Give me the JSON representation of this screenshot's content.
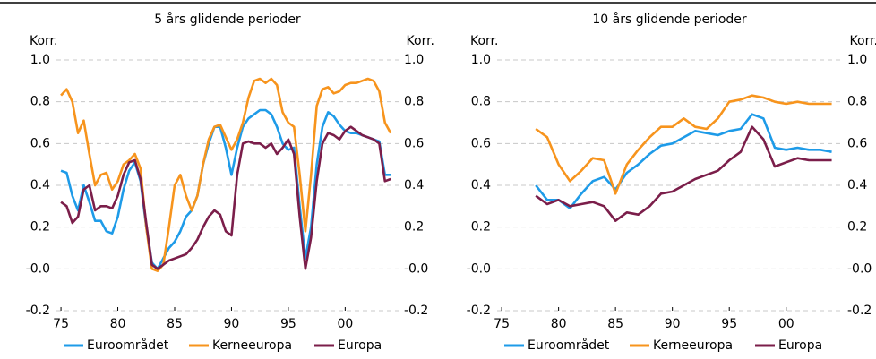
{
  "chart_data": [
    {
      "type": "line",
      "title": "5 års glidende perioder",
      "ylabel": "Korr.",
      "y2label": "Korr.",
      "xlim": [
        1974.6,
        2004.7
      ],
      "ylim": [
        -0.2,
        1.0
      ],
      "xticks": [
        {
          "value": 1975,
          "label": "75"
        },
        {
          "value": 1980,
          "label": "80"
        },
        {
          "value": 1985,
          "label": "85"
        },
        {
          "value": 1990,
          "label": "90"
        },
        {
          "value": 1995,
          "label": "95"
        },
        {
          "value": 2000,
          "label": "00"
        }
      ],
      "yticks": [
        {
          "value": -0.2,
          "label": "-0.2"
        },
        {
          "value": 0,
          "label": "-0.0"
        },
        0.2,
        0.4,
        0.6,
        0.8,
        {
          "value": 1,
          "label": "1.0"
        }
      ],
      "grid": true,
      "x": [
        1975,
        1975.5,
        1976,
        1976.5,
        1977,
        1977.5,
        1978,
        1978.5,
        1979,
        1979.5,
        1980,
        1980.5,
        1981,
        1981.5,
        1982,
        1982.5,
        1983,
        1983.5,
        1984,
        1984.5,
        1985,
        1985.5,
        1986,
        1986.5,
        1987,
        1987.5,
        1988,
        1988.5,
        1989,
        1989.5,
        1990,
        1990.5,
        1991,
        1991.5,
        1992,
        1992.5,
        1993,
        1993.5,
        1994,
        1994.5,
        1995,
        1995.5,
        1996,
        1996.5,
        1997,
        1997.5,
        1998,
        1998.5,
        1999,
        1999.5,
        2000,
        2000.5,
        2001,
        2001.5,
        2002,
        2002.5,
        2003,
        2003.5,
        2004
      ],
      "series": [
        {
          "name": "Euroområdet",
          "color": "#1e9be8",
          "values": [
            0.47,
            0.46,
            0.35,
            0.28,
            0.4,
            0.32,
            0.23,
            0.23,
            0.18,
            0.17,
            0.25,
            0.38,
            0.47,
            0.51,
            0.42,
            0.2,
            0.03,
            0.0,
            0.05,
            0.1,
            0.13,
            0.18,
            0.25,
            0.28,
            0.35,
            0.5,
            0.6,
            0.68,
            0.68,
            0.58,
            0.45,
            0.58,
            0.68,
            0.72,
            0.74,
            0.76,
            0.76,
            0.74,
            0.68,
            0.6,
            0.57,
            0.58,
            0.3,
            0.05,
            0.2,
            0.5,
            0.68,
            0.75,
            0.73,
            0.69,
            0.66,
            0.65,
            0.65,
            0.64,
            0.63,
            0.62,
            0.61,
            0.45,
            0.45
          ]
        },
        {
          "name": "Kerneeuropa",
          "color": "#f7941d",
          "values": [
            0.83,
            0.86,
            0.8,
            0.65,
            0.71,
            0.55,
            0.4,
            0.45,
            0.46,
            0.38,
            0.42,
            0.5,
            0.52,
            0.55,
            0.48,
            0.2,
            0.0,
            -0.01,
            0.02,
            0.2,
            0.4,
            0.45,
            0.35,
            0.28,
            0.35,
            0.5,
            0.62,
            0.68,
            0.69,
            0.63,
            0.57,
            0.62,
            0.7,
            0.82,
            0.9,
            0.91,
            0.89,
            0.91,
            0.88,
            0.75,
            0.7,
            0.68,
            0.45,
            0.18,
            0.45,
            0.78,
            0.86,
            0.87,
            0.84,
            0.85,
            0.88,
            0.89,
            0.89,
            0.9,
            0.91,
            0.9,
            0.85,
            0.7,
            0.65
          ]
        },
        {
          "name": "Europa",
          "color": "#7b1e4a",
          "values": [
            0.32,
            0.3,
            0.22,
            0.25,
            0.38,
            0.4,
            0.28,
            0.3,
            0.3,
            0.29,
            0.35,
            0.45,
            0.51,
            0.52,
            0.43,
            0.22,
            0.02,
            0.0,
            0.02,
            0.04,
            0.05,
            0.06,
            0.07,
            0.1,
            0.14,
            0.2,
            0.25,
            0.28,
            0.26,
            0.18,
            0.16,
            0.45,
            0.6,
            0.61,
            0.6,
            0.6,
            0.58,
            0.6,
            0.55,
            0.58,
            0.62,
            0.55,
            0.25,
            0.0,
            0.15,
            0.42,
            0.6,
            0.65,
            0.64,
            0.62,
            0.66,
            0.68,
            0.66,
            0.64,
            0.63,
            0.62,
            0.6,
            0.42,
            0.43
          ]
        }
      ]
    },
    {
      "type": "line",
      "title": "10 års glidende perioder",
      "ylabel": "Korr.",
      "y2label": "Korr.",
      "xlim": [
        1974.6,
        2004.9
      ],
      "ylim": [
        -0.2,
        1.0
      ],
      "xticks": [
        {
          "value": 1975,
          "label": "75"
        },
        {
          "value": 1980,
          "label": "80"
        },
        {
          "value": 1985,
          "label": "85"
        },
        {
          "value": 1990,
          "label": "90"
        },
        {
          "value": 1995,
          "label": "95"
        },
        {
          "value": 2000,
          "label": "00"
        }
      ],
      "yticks": [
        {
          "value": -0.2,
          "label": "-0.2"
        },
        {
          "value": 0,
          "label": "-0.0"
        },
        0.2,
        0.4,
        0.6,
        0.8,
        {
          "value": 1,
          "label": "1.0"
        }
      ],
      "grid": true,
      "x": [
        1978,
        1979,
        1980,
        1981,
        1982,
        1983,
        1984,
        1985,
        1986,
        1987,
        1988,
        1989,
        1990,
        1991,
        1992,
        1993,
        1994,
        1995,
        1996,
        1997,
        1998,
        1999,
        2000,
        2001,
        2002,
        2003,
        2004
      ],
      "series": [
        {
          "name": "Euroområdet",
          "color": "#1e9be8",
          "values": [
            0.4,
            0.33,
            0.33,
            0.29,
            0.36,
            0.42,
            0.44,
            0.38,
            0.46,
            0.5,
            0.55,
            0.59,
            0.6,
            0.63,
            0.66,
            0.65,
            0.64,
            0.66,
            0.67,
            0.74,
            0.72,
            0.58,
            0.57,
            0.58,
            0.57,
            0.57,
            0.56
          ]
        },
        {
          "name": "Kerneeuropa",
          "color": "#f7941d",
          "values": [
            0.67,
            0.63,
            0.5,
            0.42,
            0.47,
            0.53,
            0.52,
            0.36,
            0.5,
            0.57,
            0.63,
            0.68,
            0.68,
            0.72,
            0.68,
            0.67,
            0.72,
            0.8,
            0.81,
            0.83,
            0.82,
            0.8,
            0.79,
            0.8,
            0.79,
            0.79,
            0.79
          ]
        },
        {
          "name": "Europa",
          "color": "#7b1e4a",
          "values": [
            0.35,
            0.31,
            0.33,
            0.3,
            0.31,
            0.32,
            0.3,
            0.23,
            0.27,
            0.26,
            0.3,
            0.36,
            0.37,
            0.4,
            0.43,
            0.45,
            0.47,
            0.52,
            0.56,
            0.68,
            0.62,
            0.49,
            0.51,
            0.53,
            0.52,
            0.52,
            0.52
          ]
        }
      ]
    }
  ]
}
